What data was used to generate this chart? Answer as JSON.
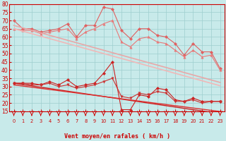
{
  "series": [
    {
      "name": "rafales_max",
      "color": "#e06060",
      "linewidth": 0.8,
      "marker": "D",
      "markersize": 2.2,
      "y": [
        70,
        65,
        65,
        63,
        64,
        65,
        68,
        60,
        67,
        67,
        78,
        77,
        64,
        59,
        65,
        65,
        61,
        60,
        56,
        49,
        56,
        51,
        51,
        41
      ]
    },
    {
      "name": "rafales_smooth",
      "color": "#e87878",
      "linewidth": 0.8,
      "marker": "^",
      "markersize": 2.5,
      "y": [
        65,
        64,
        64,
        62,
        63,
        64,
        65,
        59,
        63,
        65,
        68,
        70,
        57,
        54,
        59,
        60,
        57,
        56,
        52,
        48,
        52,
        48,
        49,
        40
      ]
    },
    {
      "name": "rafales_trend1",
      "color": "#e8a8a8",
      "linewidth": 1.2,
      "marker": null,
      "markersize": 0,
      "y": [
        67,
        65.5,
        64,
        62.5,
        61,
        59.5,
        58,
        56.5,
        55,
        53.5,
        52,
        50.5,
        49,
        47.5,
        46,
        44.5,
        43,
        41.5,
        40,
        38.5,
        37,
        35.5,
        34,
        32.5
      ]
    },
    {
      "name": "rafales_trend2",
      "color": "#f0b8b8",
      "linewidth": 1.2,
      "marker": null,
      "markersize": 0,
      "y": [
        65,
        63.5,
        62,
        60.5,
        59,
        57.5,
        56,
        54.5,
        53,
        51.5,
        50,
        48.5,
        47,
        45.5,
        44,
        42.5,
        41,
        39.5,
        38,
        36.5,
        35,
        33.5,
        32,
        30.5
      ]
    },
    {
      "name": "vent_moy_data",
      "color": "#cc2020",
      "linewidth": 0.8,
      "marker": "D",
      "markersize": 2.2,
      "y": [
        32,
        32,
        32,
        31,
        33,
        31,
        34,
        30,
        31,
        32,
        38,
        45,
        16,
        16,
        25,
        24,
        29,
        28,
        22,
        21,
        23,
        21,
        21,
        21
      ]
    },
    {
      "name": "vent_smooth",
      "color": "#cc3030",
      "linewidth": 0.8,
      "marker": "v",
      "markersize": 2.5,
      "y": [
        32,
        32,
        31,
        31,
        32,
        30,
        31,
        29,
        30,
        31,
        33,
        35,
        24,
        23,
        26,
        25,
        27,
        26,
        21,
        21,
        22,
        20,
        21,
        21
      ]
    },
    {
      "name": "vent_trend1",
      "color": "#cc2020",
      "linewidth": 1.0,
      "marker": null,
      "markersize": 0,
      "y": [
        32,
        31.2,
        30.4,
        29.6,
        28.8,
        28.0,
        27.2,
        26.4,
        25.6,
        24.8,
        24.0,
        23.2,
        22.4,
        21.6,
        20.8,
        20.0,
        19.2,
        18.4,
        17.6,
        16.8,
        16.0,
        15.2,
        14.4,
        13.6
      ]
    },
    {
      "name": "vent_trend2",
      "color": "#dd3030",
      "linewidth": 1.0,
      "marker": null,
      "markersize": 0,
      "y": [
        31,
        30.3,
        29.6,
        28.9,
        28.2,
        27.5,
        26.8,
        26.1,
        25.4,
        24.7,
        24.0,
        23.3,
        22.6,
        21.9,
        21.2,
        20.5,
        19.8,
        19.1,
        18.4,
        17.7,
        17.0,
        16.3,
        15.6,
        14.9
      ]
    }
  ],
  "ylim": [
    15,
    80
  ],
  "yticks": [
    15,
    20,
    25,
    30,
    35,
    40,
    45,
    50,
    55,
    60,
    65,
    70,
    75,
    80
  ],
  "xlabel": "Vent moyen/en rafales ( km/h )",
  "bg_color": "#c8eaea",
  "grid_color": "#9ecece",
  "tick_color": "#cc0000",
  "label_color": "#cc0000",
  "arrow_color": "#cc0000",
  "spine_color": "#cc0000"
}
